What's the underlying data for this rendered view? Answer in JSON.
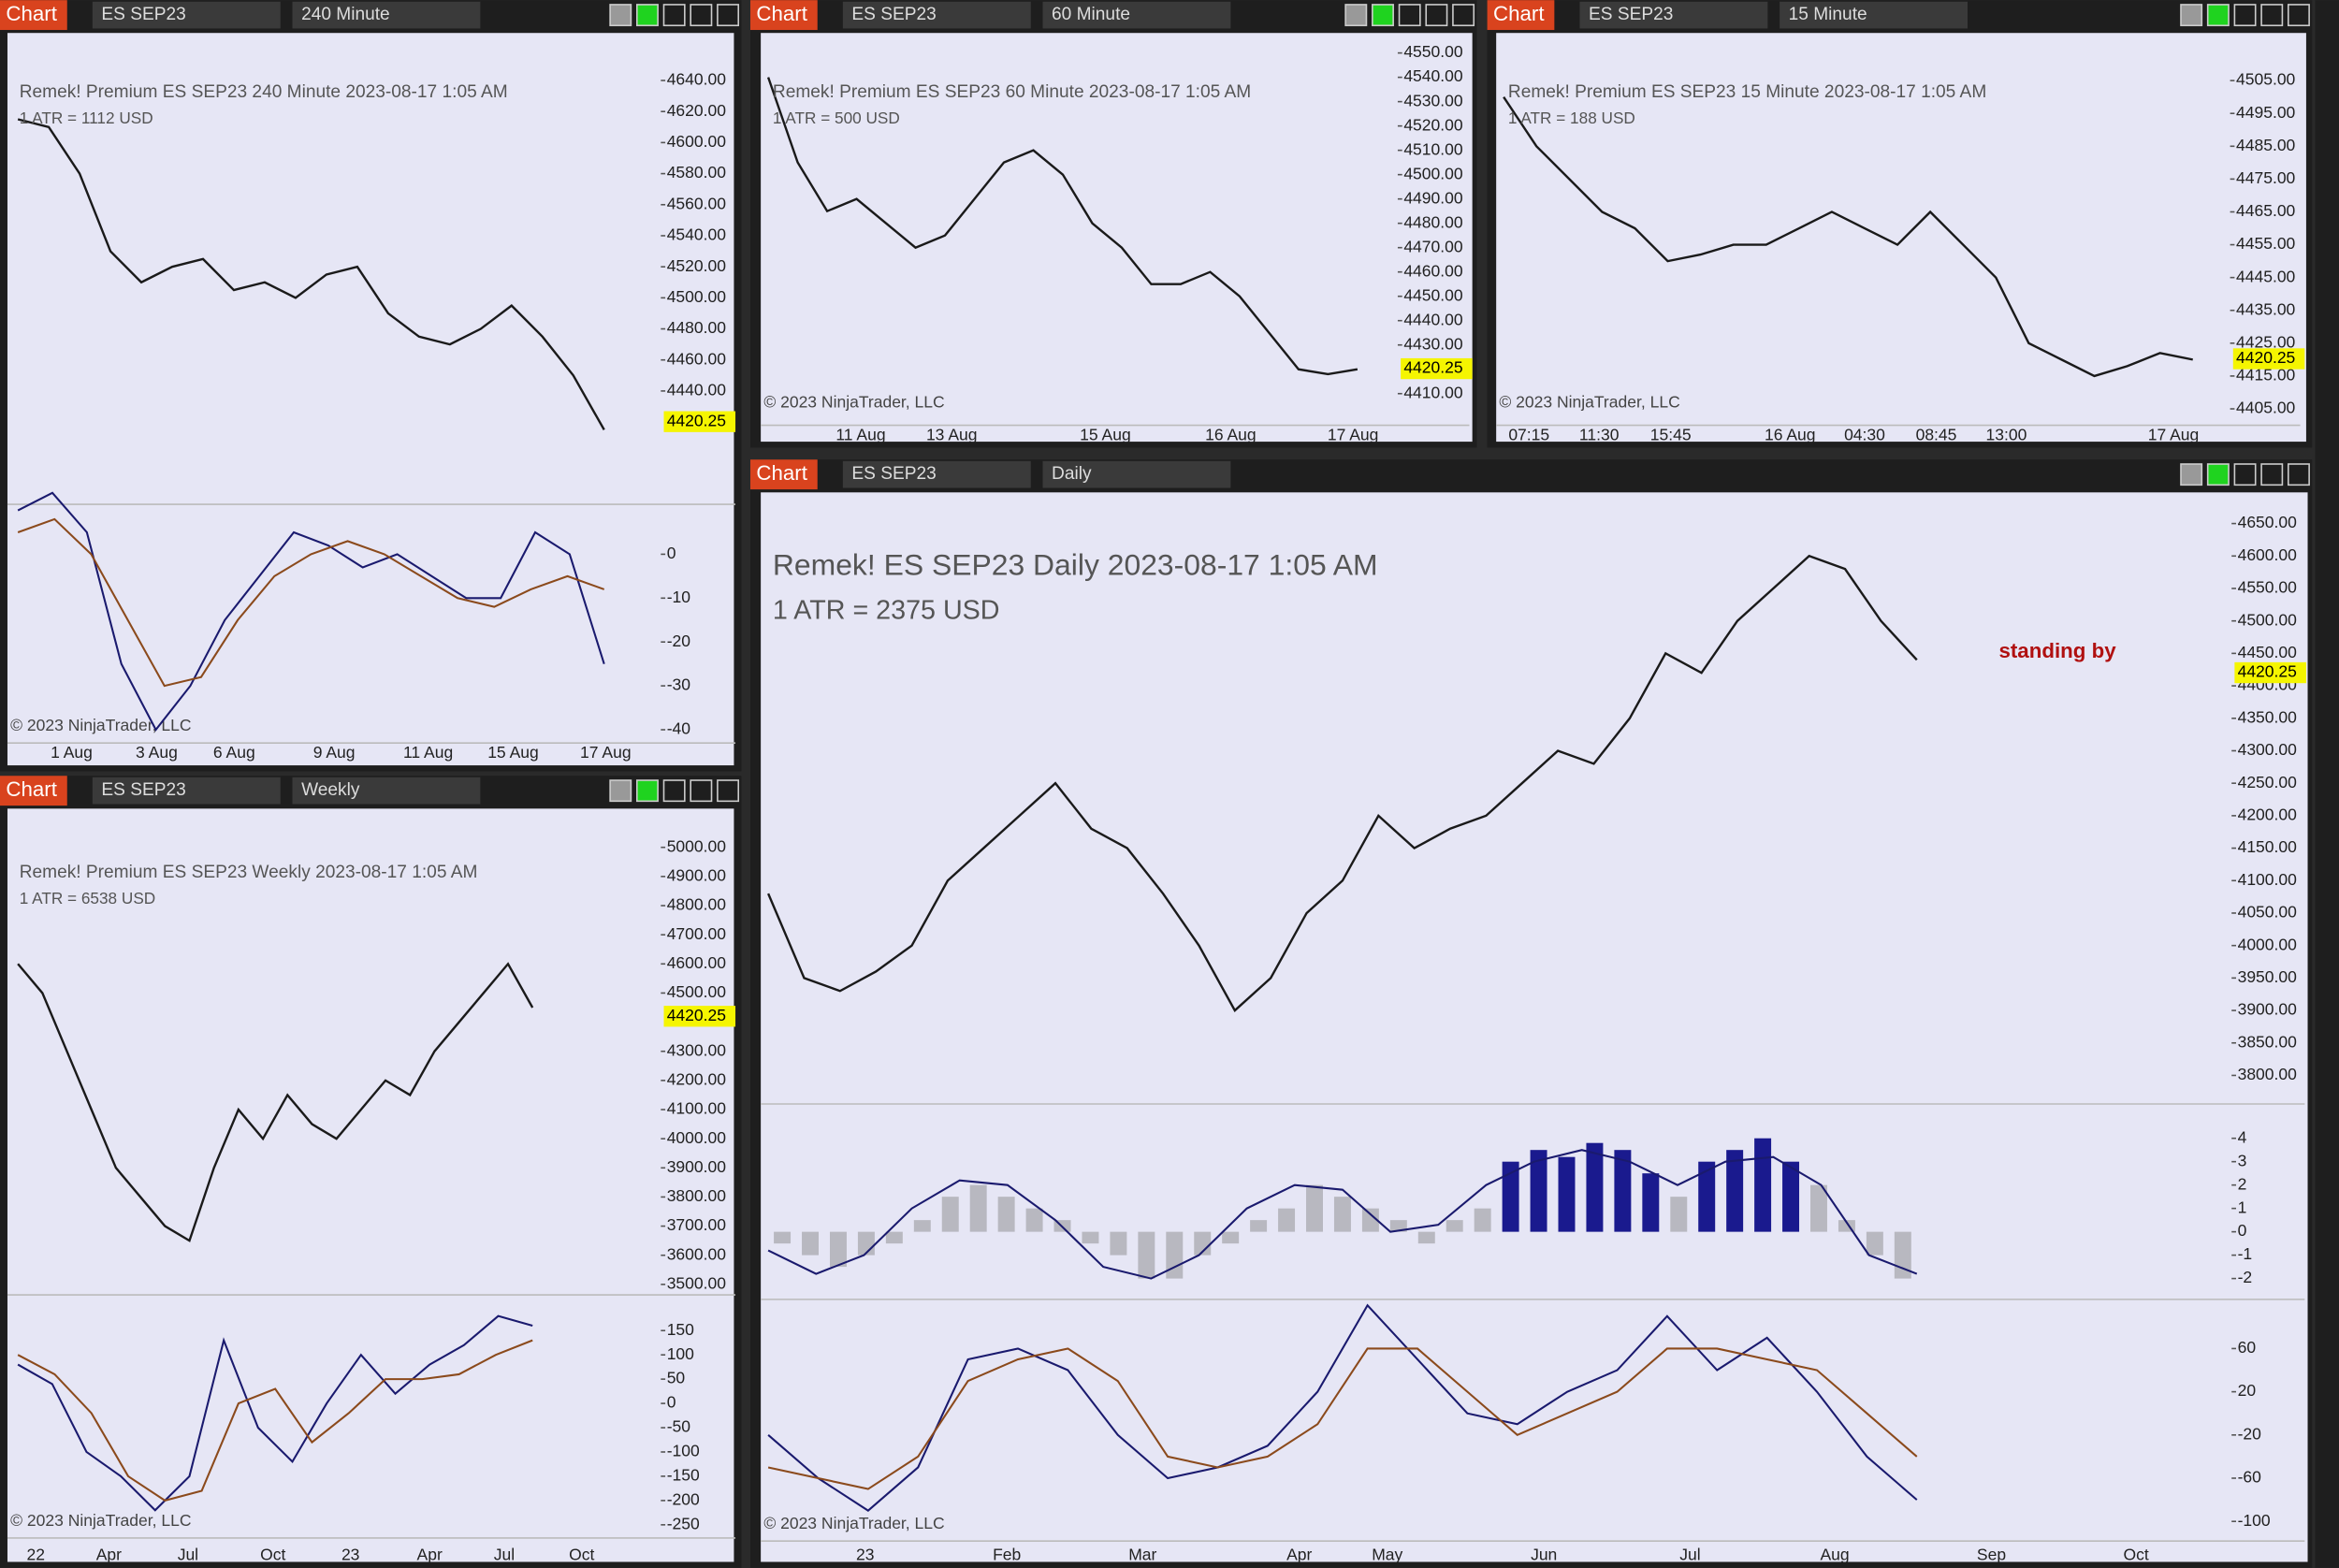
{
  "windows": [
    {
      "label": "Chart",
      "instrument": "ES SEP23",
      "interval": "240 Minute",
      "title": "Remek!  Premium  ES SEP23  240 Minute  2023-08-17 1:05 AM",
      "atr": "1 ATR = 1112 USD",
      "copyright": "© 2023 NinjaTrader, LLC",
      "last_price": 4420.25,
      "ylim": [
        4367,
        4661
      ],
      "yticks": [
        {
          "value": 4640,
          "label": "4640.00"
        },
        {
          "value": 4620,
          "label": "4620.00"
        },
        {
          "value": 4600,
          "label": "4600.00"
        },
        {
          "value": 4580,
          "label": "4580.00"
        },
        {
          "value": 4560,
          "label": "4560.00"
        },
        {
          "value": 4540,
          "label": "4540.00"
        },
        {
          "value": 4520,
          "label": "4520.00"
        },
        {
          "value": 4500,
          "label": "4500.00"
        },
        {
          "value": 4480,
          "label": "4480.00"
        },
        {
          "value": 4460,
          "label": "4460.00"
        },
        {
          "value": 4440,
          "label": "4440.00"
        }
      ],
      "xticks": [
        "1 Aug",
        "3 Aug",
        "6 Aug",
        "9 Aug",
        "11 Aug",
        "15 Aug",
        "17 Aug"
      ],
      "price": [
        4615,
        4610,
        4580,
        4530,
        4510,
        4520,
        4525,
        4505,
        4510,
        4500,
        4515,
        4520,
        4490,
        4475,
        4470,
        4480,
        4495,
        4475,
        4450,
        4415
      ],
      "osc": [
        {
          "ylim": [
            -42,
            9
          ],
          "yticks": [
            0,
            -10,
            -20,
            -30,
            -40
          ],
          "series": [
            {
              "color": "#1a1a6e",
              "values": [
                10,
                14,
                5,
                -25,
                -40,
                -30,
                -15,
                -5,
                5,
                2,
                -3,
                0,
                -5,
                -10,
                -10,
                5,
                0,
                -25
              ]
            },
            {
              "color": "#8b4a1c",
              "values": [
                5,
                8,
                0,
                -15,
                -30,
                -28,
                -15,
                -5,
                0,
                3,
                0,
                -5,
                -10,
                -12,
                -8,
                -5,
                -8
              ]
            }
          ]
        }
      ]
    },
    {
      "label": "Chart",
      "instrument": "ES SEP23",
      "interval": "60 Minute",
      "title": "Remek!  Premium  ES SEP23  60 Minute  2023-08-17 1:05 AM",
      "atr": "1 ATR = 500 USD",
      "copyright": "© 2023 NinjaTrader, LLC",
      "last_price": 4420.25,
      "ylim": [
        4397,
        4557
      ],
      "yticks": [
        {
          "value": 4550,
          "label": "4550.00"
        },
        {
          "value": 4540,
          "label": "4540.00"
        },
        {
          "value": 4530,
          "label": "4530.00"
        },
        {
          "value": 4520,
          "label": "4520.00"
        },
        {
          "value": 4510,
          "label": "4510.00"
        },
        {
          "value": 4500,
          "label": "4500.00"
        },
        {
          "value": 4490,
          "label": "4490.00"
        },
        {
          "value": 4480,
          "label": "4480.00"
        },
        {
          "value": 4470,
          "label": "4470.00"
        },
        {
          "value": 4460,
          "label": "4460.00"
        },
        {
          "value": 4450,
          "label": "4450.00"
        },
        {
          "value": 4440,
          "label": "4440.00"
        },
        {
          "value": 4430,
          "label": "4430.00"
        },
        {
          "value": 4410,
          "label": "4410.00"
        }
      ],
      "xticks": [
        "11 Aug",
        "13 Aug",
        "15 Aug",
        "16 Aug",
        "17 Aug"
      ],
      "price": [
        4540,
        4505,
        4485,
        4490,
        4480,
        4470,
        4475,
        4490,
        4505,
        4510,
        4500,
        4480,
        4470,
        4455,
        4455,
        4460,
        4450,
        4435,
        4420,
        4418,
        4420
      ],
      "osc": []
    },
    {
      "label": "Chart",
      "instrument": "ES SEP23",
      "interval": "15 Minute",
      "title": "Remek!  Premium  ES SEP23  15 Minute  2023-08-17 1:05 AM",
      "atr": "1 ATR = 188 USD",
      "copyright": "© 2023 NinjaTrader, LLC",
      "last_price": 4420.25,
      "ylim": [
        4400,
        4518.6
      ],
      "yticks": [
        {
          "value": 4505,
          "label": "4505.00"
        },
        {
          "value": 4495,
          "label": "4495.00"
        },
        {
          "value": 4485,
          "label": "4485.00"
        },
        {
          "value": 4475,
          "label": "4475.00"
        },
        {
          "value": 4465,
          "label": "4465.00"
        },
        {
          "value": 4455,
          "label": "4455.00"
        },
        {
          "value": 4445,
          "label": "4445.00"
        },
        {
          "value": 4435,
          "label": "4435.00"
        },
        {
          "value": 4425,
          "label": "4425.00"
        },
        {
          "value": 4415,
          "label": "4415.00"
        },
        {
          "value": 4405,
          "label": "4405.00"
        }
      ],
      "xticks": [
        "07:15",
        "11:30",
        "15:45",
        "16 Aug",
        "04:30",
        "08:45",
        "13:00",
        "17 Aug"
      ],
      "price": [
        4500,
        4485,
        4475,
        4465,
        4460,
        4450,
        4452,
        4455,
        4455,
        4460,
        4465,
        4460,
        4455,
        4465,
        4455,
        4445,
        4425,
        4420,
        4415,
        4418,
        4422,
        4420
      ],
      "osc": []
    },
    {
      "label": "Chart",
      "instrument": "ES SEP23",
      "interval": "Weekly",
      "title": "Remek!  Premium  ES SEP23  Weekly  2023-08-17 1:05 AM",
      "atr": "1 ATR = 6538 USD",
      "copyright": "© 2023 NinjaTrader, LLC",
      "last_price": 4420.25,
      "ylim": [
        3464,
        5092
      ],
      "yticks": [
        {
          "value": 5000,
          "label": "5000.00"
        },
        {
          "value": 4900,
          "label": "4900.00"
        },
        {
          "value": 4800,
          "label": "4800.00"
        },
        {
          "value": 4700,
          "label": "4700.00"
        },
        {
          "value": 4600,
          "label": "4600.00"
        },
        {
          "value": 4500,
          "label": "4500.00"
        },
        {
          "value": 4300,
          "label": "4300.00"
        },
        {
          "value": 4200,
          "label": "4200.00"
        },
        {
          "value": 4100,
          "label": "4100.00"
        },
        {
          "value": 4000,
          "label": "4000.00"
        },
        {
          "value": 3900,
          "label": "3900.00"
        },
        {
          "value": 3800,
          "label": "3800.00"
        },
        {
          "value": 3700,
          "label": "3700.00"
        },
        {
          "value": 3600,
          "label": "3600.00"
        },
        {
          "value": 3500,
          "label": "3500.00"
        }
      ],
      "xticks": [
        "22",
        "Apr",
        "Jul",
        "Oct",
        "23",
        "Apr",
        "Jul",
        "Oct"
      ],
      "price": [
        4600,
        4500,
        4300,
        4100,
        3900,
        3800,
        3700,
        3650,
        3900,
        4100,
        4000,
        4150,
        4050,
        4000,
        4100,
        4200,
        4150,
        4300,
        4400,
        4500,
        4600,
        4450
      ],
      "osc": [
        {
          "ylim": [
            -268,
            202
          ],
          "yticks": [
            150,
            100,
            50,
            0,
            -50,
            -100,
            -150,
            -200,
            -250
          ],
          "series": [
            {
              "color": "#1a1a6e",
              "values": [
                80,
                40,
                -100,
                -150,
                -220,
                -150,
                130,
                -50,
                -120,
                0,
                100,
                20,
                80,
                120,
                180,
                160
              ]
            },
            {
              "color": "#8b4a1c",
              "values": [
                100,
                60,
                -20,
                -150,
                -200,
                -180,
                0,
                30,
                -80,
                -20,
                50,
                50,
                60,
                100,
                130
              ]
            }
          ]
        }
      ]
    },
    {
      "label": "Chart",
      "instrument": "ES SEP23",
      "interval": "Daily",
      "title": "Remek!  ES SEP23  Daily  2023-08-17 1:05 AM",
      "atr": "1 ATR = 2375 USD",
      "copyright": "© 2023 NinjaTrader, LLC",
      "status": "standing by",
      "last_price": 4420.25,
      "ylim": [
        3756,
        4675
      ],
      "yticks": [
        {
          "value": 4650,
          "label": "4650.00"
        },
        {
          "value": 4600,
          "label": "4600.00"
        },
        {
          "value": 4550,
          "label": "4550.00"
        },
        {
          "value": 4500,
          "label": "4500.00"
        },
        {
          "value": 4450,
          "label": "4450.00"
        },
        {
          "value": 4400,
          "label": "4400.00"
        },
        {
          "value": 4350,
          "label": "4350.00"
        },
        {
          "value": 4300,
          "label": "4300.00"
        },
        {
          "value": 4250,
          "label": "4250.00"
        },
        {
          "value": 4200,
          "label": "4200.00"
        },
        {
          "value": 4150,
          "label": "4150.00"
        },
        {
          "value": 4100,
          "label": "4100.00"
        },
        {
          "value": 4050,
          "label": "4050.00"
        },
        {
          "value": 4000,
          "label": "4000.00"
        },
        {
          "value": 3950,
          "label": "3950.00"
        },
        {
          "value": 3900,
          "label": "3900.00"
        },
        {
          "value": 3850,
          "label": "3850.00"
        },
        {
          "value": 3800,
          "label": "3800.00"
        }
      ],
      "xticks": [
        "23",
        "Feb",
        "Mar",
        "Apr",
        "May",
        "Jun",
        "Jul",
        "Aug",
        "Sep",
        "Oct"
      ],
      "price": [
        4080,
        3950,
        3930,
        3960,
        4000,
        4100,
        4150,
        4200,
        4250,
        4180,
        4150,
        4080,
        4000,
        3900,
        3950,
        4050,
        4100,
        4200,
        4150,
        4180,
        4200,
        4250,
        4300,
        4280,
        4350,
        4450,
        4420,
        4500,
        4550,
        4600,
        4580,
        4500,
        4440
      ],
      "osc": [
        {
          "ylim": [
            -2.7,
            5.15
          ],
          "yticks": [
            4,
            3,
            2,
            1,
            0,
            -1,
            -2
          ],
          "histogram": [
            -0.5,
            -1,
            -1.5,
            -1,
            -0.5,
            0.5,
            1.5,
            2,
            1.5,
            1,
            0.5,
            -0.5,
            -1,
            -2,
            -2,
            -1,
            -0.5,
            0.5,
            1,
            2,
            1.5,
            1,
            0.5,
            -0.5,
            0.5,
            1,
            3,
            3.5,
            3.2,
            3.8,
            3.5,
            2.5,
            1.5,
            3,
            3.5,
            4,
            3,
            2,
            0.5,
            -1,
            -2
          ],
          "series": [
            {
              "color": "#1a1a6e",
              "values": [
                -0.8,
                -1.8,
                -1,
                1,
                2.2,
                2,
                0.5,
                -1.5,
                -2,
                -1,
                1,
                2,
                1.8,
                0,
                0.3,
                2,
                3,
                3.5,
                3,
                2,
                3,
                3.2,
                2,
                -1,
                -1.8
              ]
            }
          ]
        },
        {
          "ylim": [
            -114,
            100
          ],
          "yticks": [
            60,
            20,
            -20,
            -60,
            -100
          ],
          "series": [
            {
              "color": "#1a1a6e",
              "values": [
                -20,
                -60,
                -90,
                -50,
                50,
                60,
                40,
                -20,
                -60,
                -50,
                -30,
                20,
                100,
                50,
                0,
                -10,
                20,
                40,
                90,
                40,
                70,
                20,
                -40,
                -80
              ]
            },
            {
              "color": "#8b4a1c",
              "values": [
                -50,
                -60,
                -70,
                -40,
                30,
                50,
                60,
                30,
                -40,
                -50,
                -40,
                -10,
                60,
                60,
                20,
                -20,
                0,
                20,
                60,
                60,
                50,
                40,
                0,
                -40
              ]
            }
          ]
        }
      ]
    }
  ]
}
